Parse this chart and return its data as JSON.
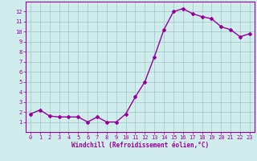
{
  "x": [
    0,
    1,
    2,
    3,
    4,
    5,
    6,
    7,
    8,
    9,
    10,
    11,
    12,
    13,
    14,
    15,
    16,
    17,
    18,
    19,
    20,
    21,
    22,
    23
  ],
  "y": [
    1.8,
    2.2,
    1.6,
    1.5,
    1.5,
    1.5,
    1.0,
    1.5,
    1.0,
    1.0,
    1.8,
    3.5,
    5.0,
    7.5,
    10.2,
    12.0,
    12.3,
    11.8,
    11.5,
    11.3,
    10.5,
    10.2,
    9.5,
    9.8
  ],
  "line_color": "#990099",
  "marker": "D",
  "marker_size": 2.0,
  "bg_color": "#d0ecec",
  "grid_color": "#a0c8c8",
  "xlabel": "Windchill (Refroidissement éolien,°C)",
  "xlim": [
    -0.5,
    23.5
  ],
  "ylim": [
    0,
    13
  ],
  "xticks": [
    0,
    1,
    2,
    3,
    4,
    5,
    6,
    7,
    8,
    9,
    10,
    11,
    12,
    13,
    14,
    15,
    16,
    17,
    18,
    19,
    20,
    21,
    22,
    23
  ],
  "yticks": [
    1,
    2,
    3,
    4,
    5,
    6,
    7,
    8,
    9,
    10,
    11,
    12
  ],
  "tick_fontsize": 5.0,
  "xlabel_fontsize": 5.5,
  "line_width": 1.0
}
